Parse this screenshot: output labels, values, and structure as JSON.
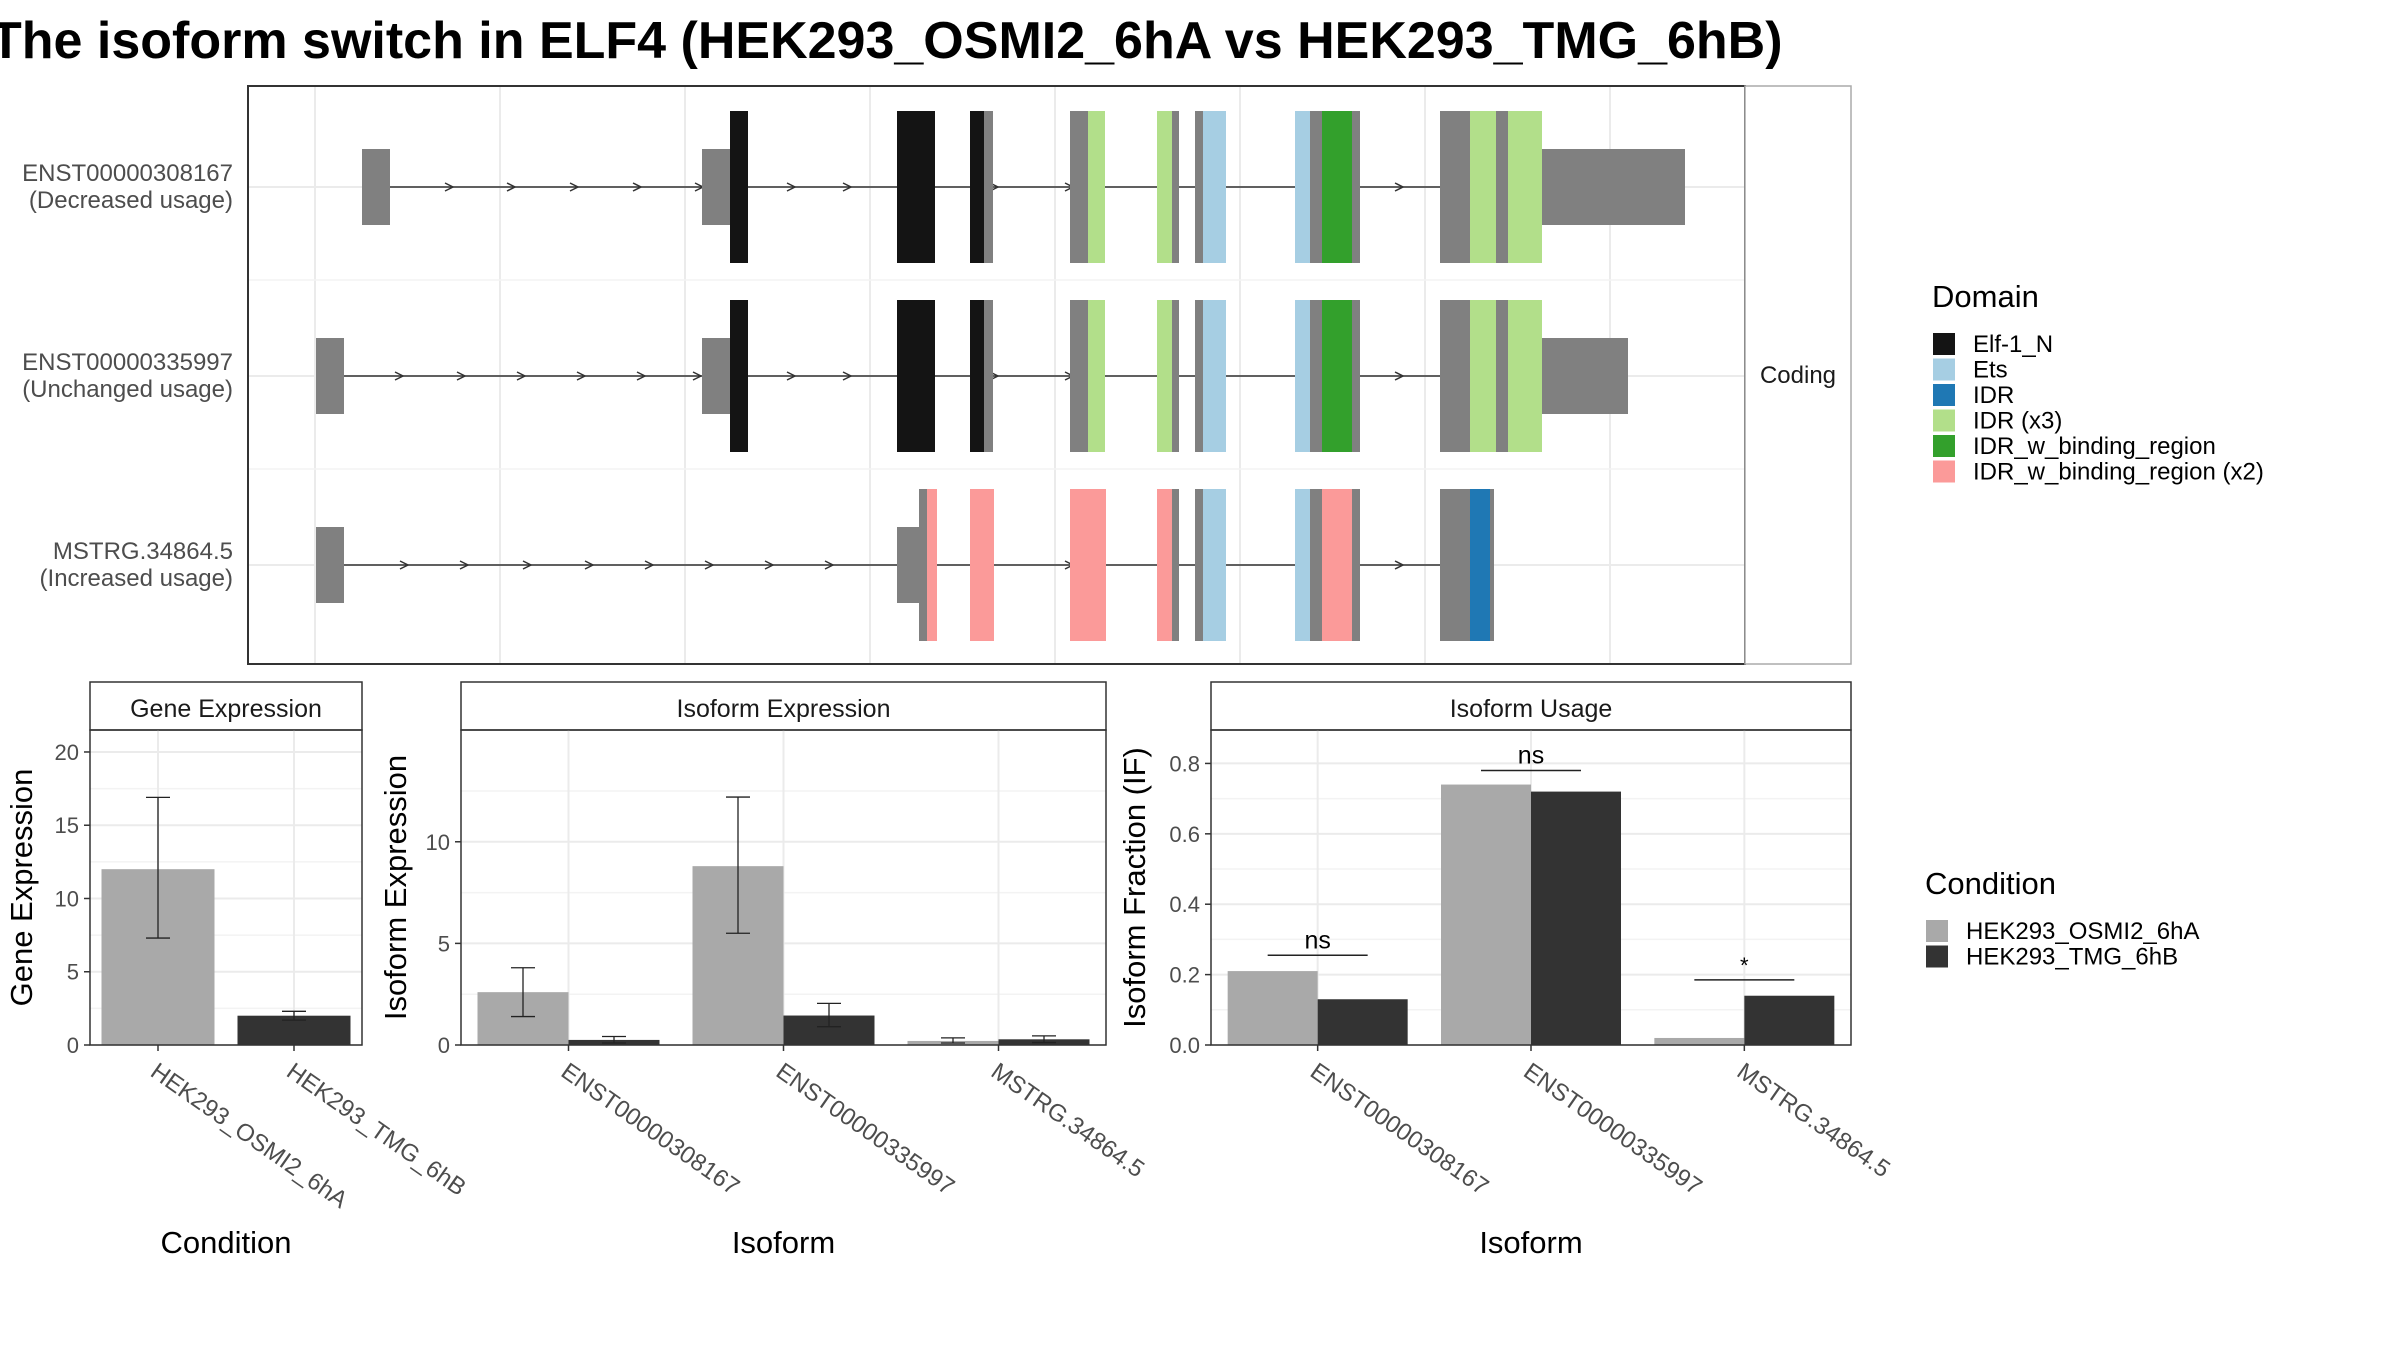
{
  "title": "The isoform switch in ELF4 (HEK293_OSMI2_6hA vs HEK293_TMG_6hB)",
  "structure_panel": {
    "strip_label": "Coding",
    "isoforms": [
      {
        "id": "ENST00000308167",
        "usage": "(Decreased usage)"
      },
      {
        "id": "ENST00000335997",
        "usage": "(Unchanged usage)"
      },
      {
        "id": "MSTRG.34864.5",
        "usage": "(Increased usage)"
      }
    ]
  },
  "legend_domain": {
    "title": "Domain",
    "items": [
      {
        "label": "Elf-1_N",
        "color": "#141414"
      },
      {
        "label": "Ets",
        "color": "#A6CEE3"
      },
      {
        "label": "IDR",
        "color": "#1F78B4"
      },
      {
        "label": "IDR (x3)",
        "color": "#B2DF8A"
      },
      {
        "label": "IDR_w_binding_region",
        "color": "#33A02C"
      },
      {
        "label": "IDR_w_binding_region (x2)",
        "color": "#FB9A99"
      }
    ]
  },
  "legend_condition": {
    "title": "Condition",
    "items": [
      {
        "label": "HEK293_OSMI2_6hA",
        "color": "#A9A9A9"
      },
      {
        "label": "HEK293_TMG_6hB",
        "color": "#333333"
      }
    ]
  },
  "chart_data": [
    {
      "type": "bar",
      "title": "Gene Expression",
      "xlabel": "Condition",
      "ylabel": "Gene Expression",
      "ylim": [
        0,
        21.5
      ],
      "yticks": [
        0,
        5,
        10,
        15,
        20
      ],
      "categories": [
        "HEK293_OSMI2_6hA",
        "HEK293_TMG_6hB"
      ],
      "series": [
        {
          "values": [
            12.0,
            2.0
          ],
          "err_low": [
            7.3,
            1.7
          ],
          "err_high": [
            16.9,
            2.3
          ],
          "colors": [
            "#A9A9A9",
            "#333333"
          ]
        }
      ]
    },
    {
      "type": "bar",
      "title": "Isoform Expression",
      "xlabel": "Isoform",
      "ylabel": "Isoform Expression",
      "ylim": [
        0,
        15.5
      ],
      "yticks": [
        0,
        5,
        10
      ],
      "categories": [
        "ENST00000308167",
        "ENST00000335997",
        "MSTRG.34864.5"
      ],
      "series": [
        {
          "name": "HEK293_OSMI2_6hA",
          "color": "#A9A9A9",
          "values": [
            2.6,
            8.8,
            0.2
          ],
          "err_low": [
            1.4,
            5.5,
            0.1
          ],
          "err_high": [
            3.8,
            12.2,
            0.35
          ]
        },
        {
          "name": "HEK293_TMG_6hB",
          "color": "#333333",
          "values": [
            0.25,
            1.45,
            0.28
          ],
          "err_low": [
            0.1,
            0.9,
            0.12
          ],
          "err_high": [
            0.42,
            2.05,
            0.45
          ]
        }
      ]
    },
    {
      "type": "bar",
      "title": "Isoform Usage",
      "xlabel": "Isoform",
      "ylabel": "Isoform Fraction (IF)",
      "ylim": [
        0,
        0.895
      ],
      "yticks": [
        0.0,
        0.2,
        0.4,
        0.6,
        0.8
      ],
      "ytick_labels": [
        "0.0",
        "0.2",
        "0.4",
        "0.6",
        "0.8"
      ],
      "categories": [
        "ENST00000308167",
        "ENST00000335997",
        "MSTRG.34864.5"
      ],
      "series": [
        {
          "name": "HEK293_OSMI2_6hA",
          "color": "#A9A9A9",
          "values": [
            0.21,
            0.74,
            0.02
          ]
        },
        {
          "name": "HEK293_TMG_6hB",
          "color": "#333333",
          "values": [
            0.13,
            0.72,
            0.14
          ]
        }
      ],
      "significance": [
        {
          "label": "ns",
          "y": 0.255
        },
        {
          "label": "ns",
          "y": 0.78
        },
        {
          "label": "*",
          "y": 0.185
        }
      ]
    }
  ]
}
